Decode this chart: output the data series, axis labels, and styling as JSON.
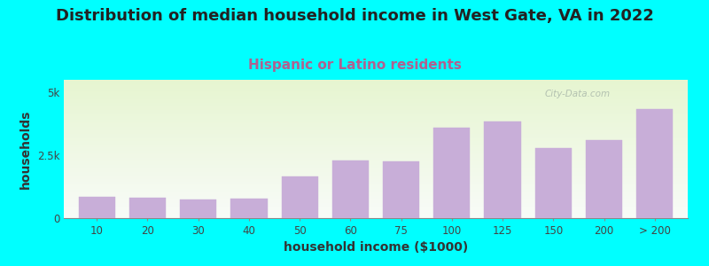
{
  "title": "Distribution of median household income in West Gate, VA in 2022",
  "subtitle": "Hispanic or Latino residents",
  "xlabel": "household income ($1000)",
  "ylabel": "households",
  "background_color": "#00FFFF",
  "plot_bg_gradient_top": "#e6f5d0",
  "plot_bg_gradient_bottom": "#f8fbf8",
  "bar_color": "#c8aed8",
  "bar_edge_color": "#c8aed8",
  "categories": [
    "10",
    "20",
    "30",
    "40",
    "50",
    "60",
    "75",
    "100",
    "125",
    "150",
    "200",
    "> 200"
  ],
  "values": [
    850,
    820,
    750,
    780,
    1650,
    2300,
    2250,
    3600,
    3850,
    2800,
    3100,
    4350
  ],
  "yticks": [
    0,
    2500,
    5000
  ],
  "ytick_labels": [
    "0",
    "2.5k",
    "5k"
  ],
  "ylim": [
    0,
    5500
  ],
  "title_fontsize": 13,
  "subtitle_fontsize": 11,
  "subtitle_color": "#b06090",
  "axis_label_fontsize": 10,
  "tick_fontsize": 8.5,
  "watermark_text": "City-Data.com",
  "watermark_color": "#aab8aa",
  "bar_width": 0.72
}
